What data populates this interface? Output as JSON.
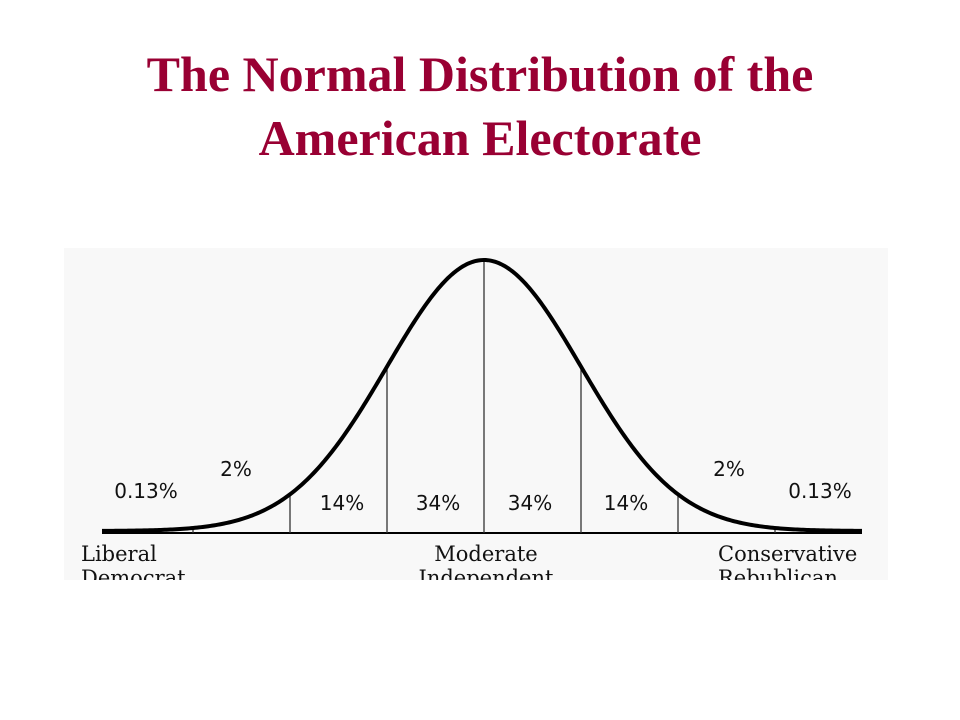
{
  "title_lines": [
    "The Normal Distribution of the",
    "American Electorate"
  ],
  "chart_data": {
    "type": "area",
    "distribution": "normal",
    "x_domain": [
      -4,
      4
    ],
    "boundaries_sd": [
      -3,
      -2,
      -1,
      0,
      1,
      2,
      3
    ],
    "segments": [
      {
        "range_sd": [
          -4,
          -3
        ],
        "label": "0.13%"
      },
      {
        "range_sd": [
          -3,
          -2
        ],
        "label": "2%"
      },
      {
        "range_sd": [
          -2,
          -1
        ],
        "label": "14%"
      },
      {
        "range_sd": [
          -1,
          0
        ],
        "label": "34%"
      },
      {
        "range_sd": [
          0,
          1
        ],
        "label": "34%"
      },
      {
        "range_sd": [
          1,
          2
        ],
        "label": "14%"
      },
      {
        "range_sd": [
          2,
          3
        ],
        "label": "2%"
      },
      {
        "range_sd": [
          3,
          4
        ],
        "label": "0.13%"
      }
    ],
    "axis_labels": [
      {
        "name": "liberal",
        "lines": [
          "Liberal",
          "Democrat"
        ]
      },
      {
        "name": "moderate",
        "lines": [
          "Moderate",
          "Independent"
        ]
      },
      {
        "name": "conservative",
        "lines": [
          "Conservative",
          "Rebublican"
        ]
      }
    ],
    "colors": {
      "title": "#990033",
      "curve": "#000000"
    }
  }
}
